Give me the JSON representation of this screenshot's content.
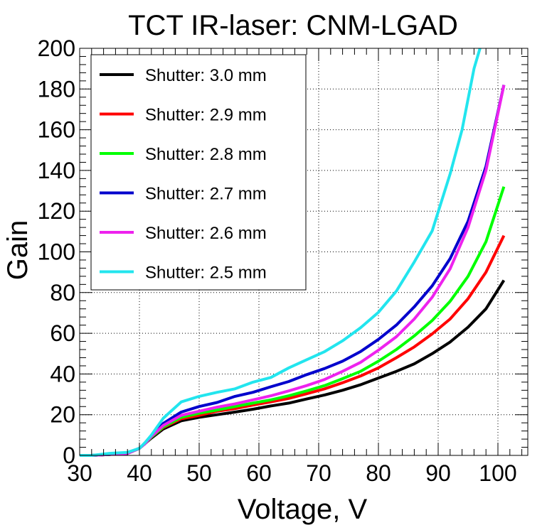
{
  "chart_data": {
    "type": "line",
    "title": "TCT IR-laser: CNM-LGAD",
    "xlabel": "Voltage, V",
    "ylabel": "Gain",
    "xlim": [
      30,
      105
    ],
    "ylim": [
      0,
      200
    ],
    "xticks": [
      30,
      40,
      50,
      60,
      70,
      80,
      90,
      100
    ],
    "yticks": [
      0,
      20,
      40,
      60,
      80,
      100,
      120,
      140,
      160,
      180,
      200
    ],
    "grid": true,
    "legend_position": "top-left",
    "series": [
      {
        "name": "Shutter: 3.0 mm",
        "color": "#000000",
        "x": [
          30,
          32,
          35,
          38,
          40,
          41,
          42,
          44,
          47,
          50,
          53,
          56,
          59,
          62,
          65,
          68,
          71,
          74,
          77,
          80,
          83,
          86,
          89,
          92,
          95,
          98,
          101
        ],
        "y": [
          0,
          0,
          0.5,
          1,
          3.5,
          6,
          8.5,
          13,
          17,
          18.7,
          20,
          21.3,
          22.7,
          24.3,
          25.7,
          27.7,
          29.7,
          32,
          34.7,
          38,
          41.3,
          45,
          50,
          55.7,
          63,
          72,
          86
        ]
      },
      {
        "name": "Shutter: 2.9 mm",
        "color": "#ff0000",
        "x": [
          30,
          32,
          35,
          38,
          40,
          41,
          42,
          44,
          47,
          50,
          53,
          56,
          59,
          62,
          65,
          68,
          71,
          74,
          77,
          80,
          83,
          86,
          89,
          92,
          95,
          98,
          101
        ],
        "y": [
          0,
          0,
          0.5,
          1,
          3.5,
          6,
          9,
          13.7,
          18,
          19.7,
          21.7,
          23,
          24.7,
          26.3,
          28,
          30.3,
          32.7,
          35.7,
          39,
          43,
          48,
          53.3,
          59.7,
          67,
          77,
          90,
          108
        ]
      },
      {
        "name": "Shutter: 2.8 mm",
        "color": "#00ff00",
        "x": [
          30,
          32,
          35,
          38,
          40,
          41,
          42,
          44,
          47,
          50,
          53,
          56,
          59,
          62,
          65,
          68,
          71,
          74,
          77,
          80,
          83,
          86,
          89,
          92,
          95,
          98,
          101
        ],
        "y": [
          0,
          0,
          0.5,
          1,
          3.5,
          6,
          9,
          14,
          18.7,
          20.7,
          22.3,
          24,
          25.7,
          27.3,
          29.3,
          31.7,
          34.3,
          37.7,
          41.3,
          46.3,
          52,
          58.7,
          66.3,
          75.7,
          88,
          105,
          132
        ]
      },
      {
        "name": "Shutter: 2.7 mm",
        "color": "#0000cc",
        "x": [
          30,
          32,
          35,
          38,
          40,
          41,
          42,
          44,
          47,
          50,
          53,
          56,
          59,
          62,
          65,
          68,
          71,
          74,
          77,
          80,
          83,
          86,
          89,
          92,
          95,
          98,
          101
        ],
        "y": [
          0,
          0,
          0.5,
          1,
          3.5,
          6,
          9.5,
          15.7,
          21.3,
          24,
          26,
          29,
          31,
          33.7,
          36.3,
          39.7,
          42.7,
          46.3,
          51,
          57,
          64,
          73,
          83.3,
          96.7,
          115,
          142,
          182
        ]
      },
      {
        "name": "Shutter: 2.6 mm",
        "color": "#ee22ee",
        "x": [
          30,
          32,
          35,
          38,
          40,
          41,
          42,
          44,
          47,
          50,
          53,
          56,
          59,
          62,
          65,
          68,
          71,
          74,
          77,
          80,
          83,
          86,
          89,
          92,
          95,
          98,
          101
        ],
        "y": [
          0,
          0,
          0.5,
          1,
          3.5,
          6,
          9.3,
          14.7,
          19.7,
          21.7,
          23.7,
          25.3,
          27.3,
          29.3,
          31.7,
          34.3,
          37.3,
          41.3,
          45.7,
          51.7,
          58.3,
          67,
          77.7,
          91.7,
          112,
          140,
          182
        ]
      },
      {
        "name": "Shutter: 2.5 mm",
        "color": "#22e5ee",
        "x": [
          30,
          32,
          35,
          38,
          40,
          41,
          42,
          44,
          47,
          50,
          53,
          56,
          59,
          62,
          65,
          68,
          71,
          74,
          77,
          80,
          83,
          86,
          89,
          92,
          94,
          96,
          97
        ],
        "y": [
          0,
          0,
          1,
          1.5,
          3.5,
          6.5,
          10,
          18.3,
          26.3,
          29,
          31,
          32.7,
          36,
          38.3,
          43,
          47,
          51,
          56.3,
          62.7,
          70.3,
          80.7,
          95,
          110.3,
          138.3,
          160,
          190,
          200
        ]
      }
    ]
  }
}
